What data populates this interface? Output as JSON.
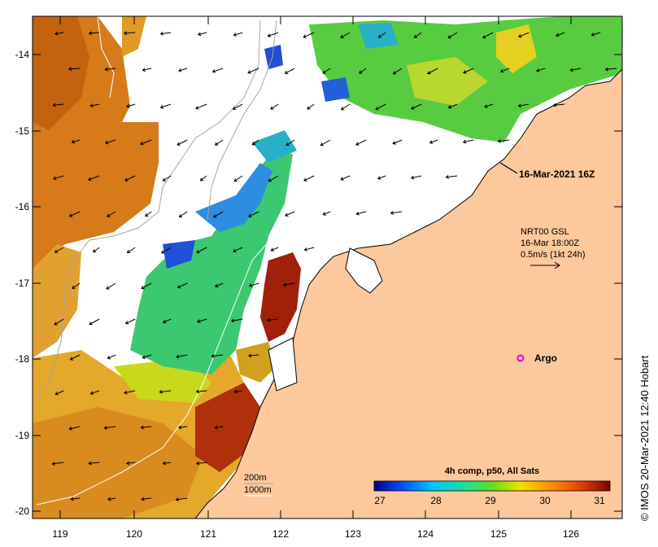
{
  "map": {
    "timestamp_label": "16-Mar-2021 16Z",
    "current_key": {
      "line1": "NRT00 GSL",
      "line2": "16-Mar 18:00Z",
      "line3": "0.5m/s (1kt 24h)"
    },
    "argo_label": "Argo",
    "isobaths": {
      "shallow": "200m",
      "deep": "1000m"
    },
    "credit": "© IMOS 20-Mar-2021 12:40 Hobart",
    "colors": {
      "land": "#fcc89c",
      "border": "#000000",
      "isobath": "#a6a6a6",
      "isobath_deep": "#ffffff",
      "argo": "#e000e0"
    }
  },
  "axes": {
    "x_ticks": [
      "119",
      "120",
      "121",
      "122",
      "123",
      "124",
      "125",
      "126"
    ],
    "y_ticks": [
      "-14",
      "-15",
      "-16",
      "-17",
      "-18",
      "-19",
      "-20"
    ]
  },
  "colorbar": {
    "title": "4h comp, p50, All Sats",
    "tick_labels": [
      "27",
      "28",
      "29",
      "30",
      "31"
    ],
    "colors": [
      "#00007f",
      "#0050ff",
      "#00c8ff",
      "#20e090",
      "#60e020",
      "#f0e000",
      "#ff9000",
      "#e04000",
      "#800000"
    ]
  }
}
